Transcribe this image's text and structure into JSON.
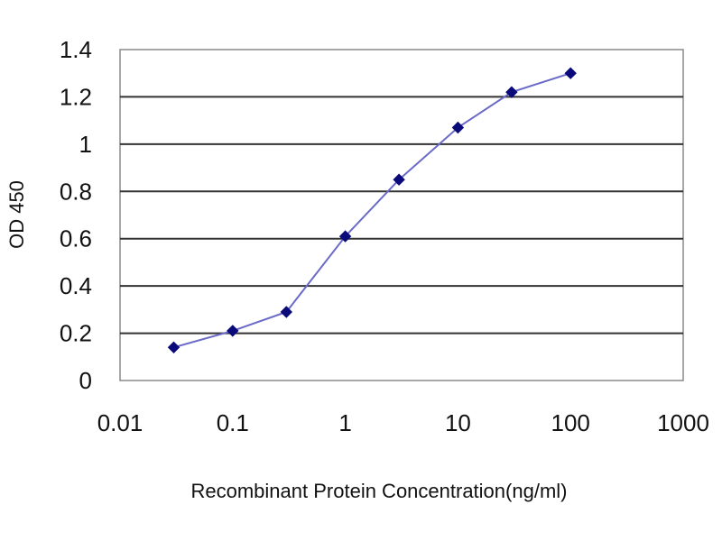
{
  "chart_data": {
    "type": "line",
    "title": "",
    "xlabel": "Recombinant  Protein Concentration(ng/ml)",
    "ylabel": "OD 450",
    "x_scale": "log",
    "xlim": [
      0.01,
      1000
    ],
    "ylim": [
      0,
      1.4
    ],
    "x_ticks": [
      "0.01",
      "0.1",
      "1",
      "10",
      "100",
      "1000"
    ],
    "y_ticks": [
      "0",
      "0.2",
      "0.4",
      "0.6",
      "0.8",
      "1",
      "1.2",
      "1.4"
    ],
    "grid": "horizontal",
    "legend": "none",
    "series": [
      {
        "x": [
          0.03,
          0.1,
          0.3,
          1,
          3,
          10,
          30,
          100
        ],
        "y": [
          0.14,
          0.21,
          0.29,
          0.61,
          0.85,
          1.07,
          1.22,
          1.3
        ],
        "color": "#1a1a8c",
        "marker": "diamond"
      }
    ],
    "colors": {
      "plot_background": "#ffffff",
      "frame": "#8a8a8a",
      "gridline": "#333333",
      "line": "#6a6ac8",
      "marker": "#0a0a7a"
    }
  }
}
